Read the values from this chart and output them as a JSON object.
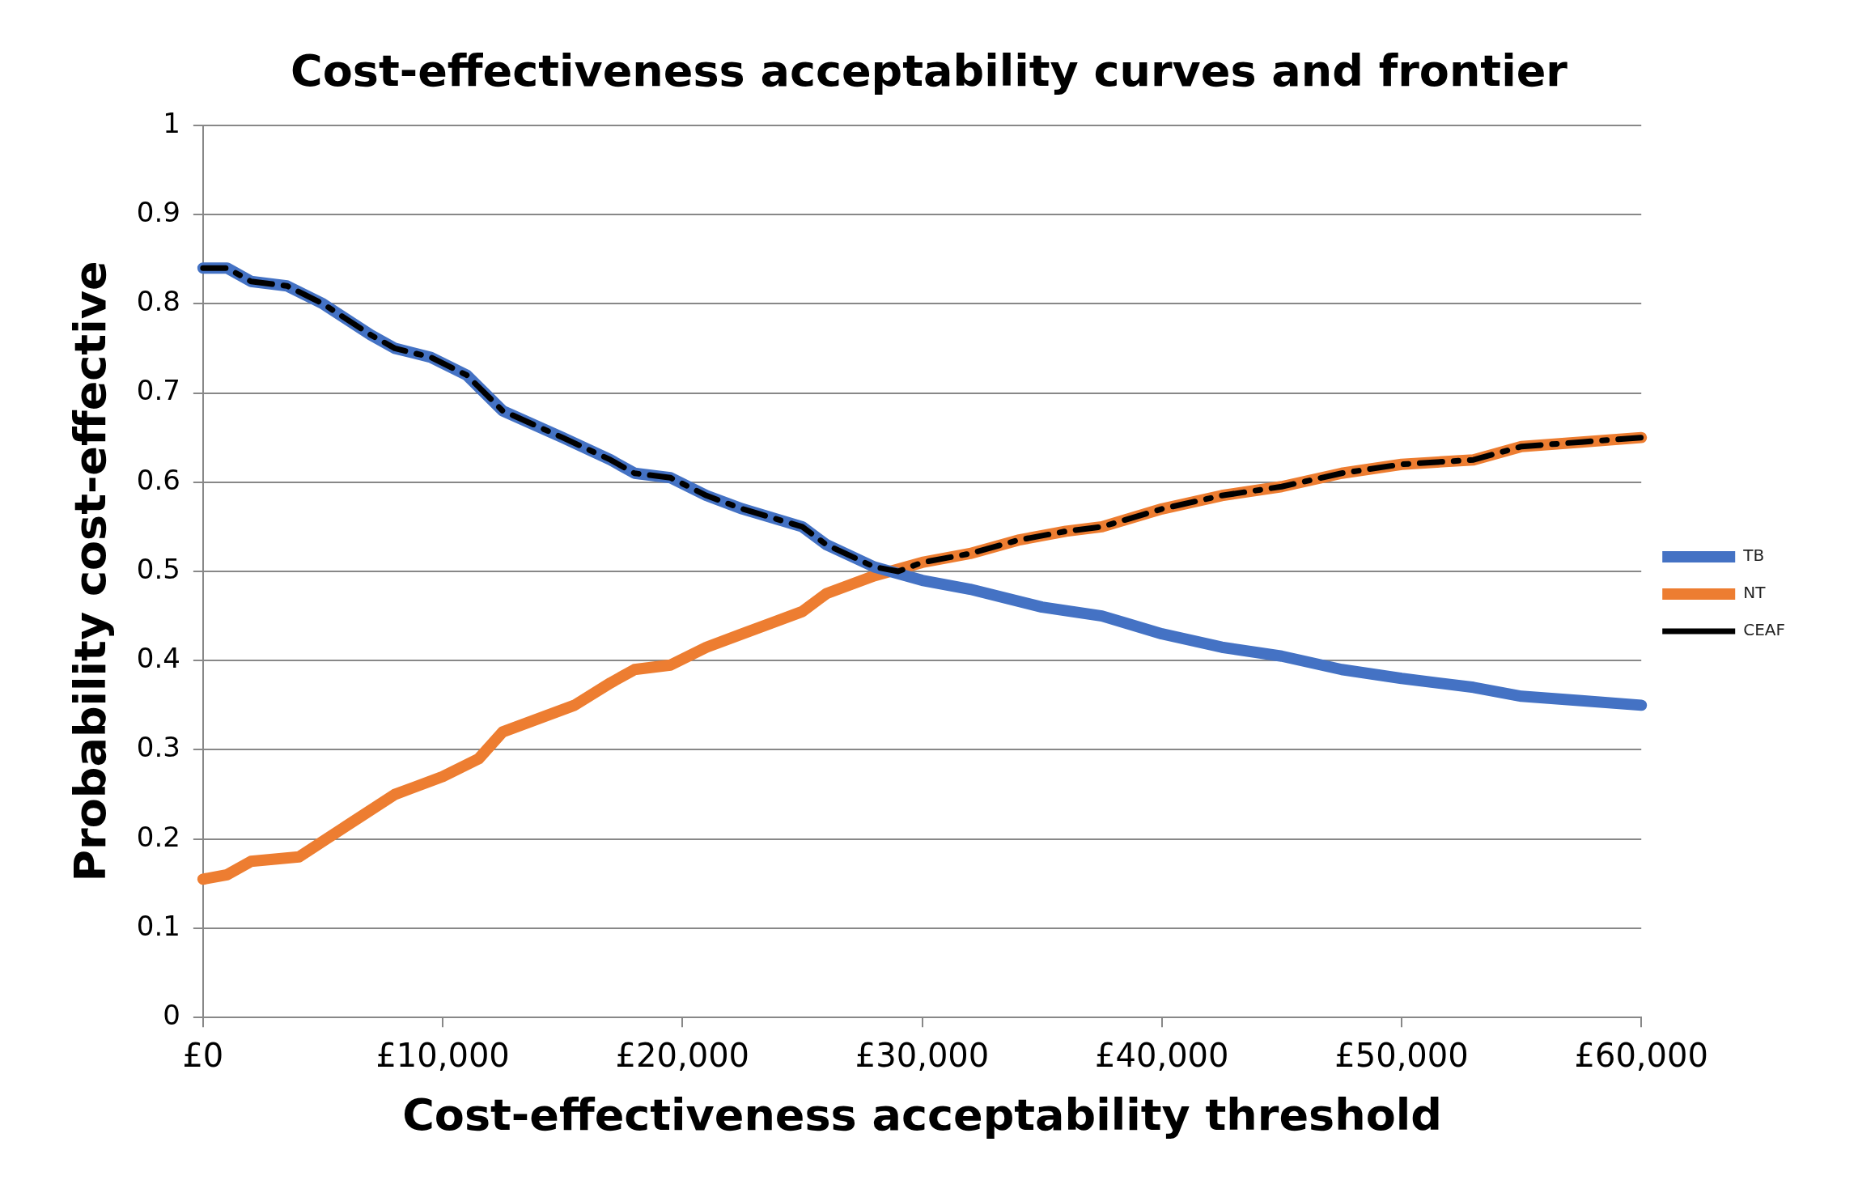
{
  "chart_data": {
    "type": "line",
    "title": "Cost-effectiveness acceptability curves and frontier",
    "xlabel": "Cost-effectiveness acceptability threshold",
    "ylabel": "Probability cost-effective",
    "xlim": [
      0,
      60000
    ],
    "xticks": [
      {
        "value": 0,
        "label": "£0"
      },
      {
        "value": 10000,
        "label": "£10,000"
      },
      {
        "value": 20000,
        "label": "£20,000"
      },
      {
        "value": 30000,
        "label": "£30,000"
      },
      {
        "value": 40000,
        "label": "£40,000"
      },
      {
        "value": 50000,
        "label": "£50,000"
      },
      {
        "value": 60000,
        "label": "£60,000"
      }
    ],
    "ylim": [
      0,
      1
    ],
    "yticks": [
      0,
      0.1,
      0.2,
      0.3,
      0.4,
      0.5,
      0.6,
      0.7,
      0.8,
      0.9,
      1
    ],
    "grid": "y",
    "legend": "right",
    "marker": "none",
    "series": [
      {
        "name": "TB",
        "color": "#4472c4",
        "line_style": "solid",
        "x": [
          0,
          1000,
          2000,
          3500,
          5000,
          7000,
          8000,
          9500,
          11000,
          12500,
          15000,
          17000,
          18000,
          19500,
          21000,
          22500,
          25000,
          26000,
          28000,
          30000,
          32000,
          35000,
          37500,
          40000,
          42500,
          45000,
          47500,
          50000,
          53000,
          55000,
          57500,
          60000
        ],
        "values": [
          0.84,
          0.84,
          0.825,
          0.82,
          0.8,
          0.765,
          0.75,
          0.74,
          0.72,
          0.68,
          0.65,
          0.625,
          0.61,
          0.605,
          0.585,
          0.57,
          0.55,
          0.53,
          0.505,
          0.49,
          0.48,
          0.46,
          0.45,
          0.43,
          0.415,
          0.405,
          0.39,
          0.38,
          0.37,
          0.36,
          0.355,
          0.35
        ]
      },
      {
        "name": "NT",
        "color": "#ed7d31",
        "line_style": "solid",
        "x": [
          0,
          1000,
          2000,
          4000,
          6000,
          8000,
          10000,
          11500,
          12500,
          14000,
          15500,
          17000,
          18000,
          19500,
          21000,
          22500,
          25000,
          26000,
          28000,
          30000,
          32000,
          34000,
          36000,
          37500,
          40000,
          42500,
          45000,
          47500,
          50000,
          53000,
          55000,
          57500,
          60000
        ],
        "values": [
          0.155,
          0.16,
          0.175,
          0.18,
          0.215,
          0.25,
          0.27,
          0.29,
          0.32,
          0.335,
          0.35,
          0.375,
          0.39,
          0.395,
          0.415,
          0.43,
          0.455,
          0.475,
          0.495,
          0.51,
          0.52,
          0.535,
          0.545,
          0.55,
          0.57,
          0.585,
          0.595,
          0.61,
          0.62,
          0.625,
          0.64,
          0.645,
          0.65
        ]
      },
      {
        "name": "CEAF",
        "color": "#000000",
        "line_style": "dashed",
        "x": [
          0,
          1000,
          2000,
          3500,
          5000,
          7000,
          8000,
          9500,
          11000,
          12500,
          15000,
          17000,
          18000,
          19500,
          21000,
          22500,
          25000,
          26000,
          28000,
          29000,
          30000,
          32000,
          34000,
          36000,
          37500,
          40000,
          42500,
          45000,
          47500,
          50000,
          53000,
          55000,
          57500,
          60000
        ],
        "values": [
          0.84,
          0.84,
          0.825,
          0.82,
          0.8,
          0.765,
          0.75,
          0.74,
          0.72,
          0.68,
          0.65,
          0.625,
          0.61,
          0.605,
          0.585,
          0.57,
          0.55,
          0.53,
          0.505,
          0.5,
          0.51,
          0.52,
          0.535,
          0.545,
          0.55,
          0.57,
          0.585,
          0.595,
          0.61,
          0.62,
          0.625,
          0.64,
          0.645,
          0.65
        ]
      }
    ]
  }
}
